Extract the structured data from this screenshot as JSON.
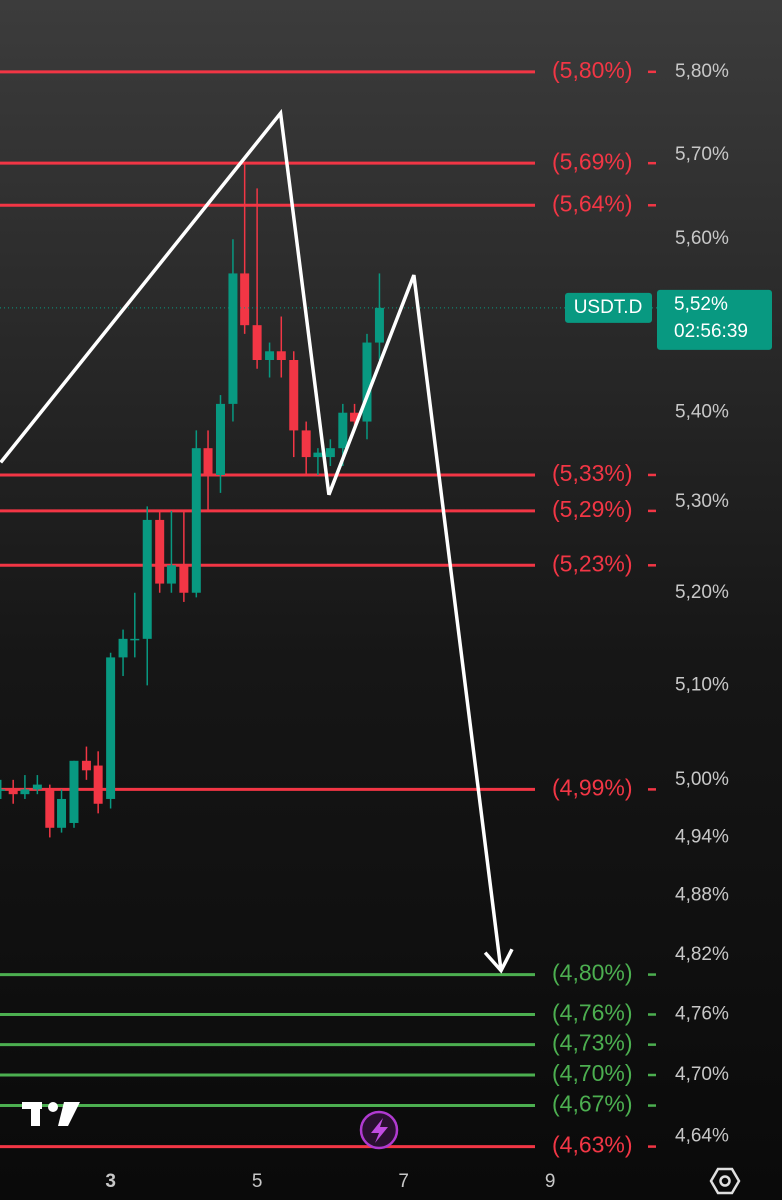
{
  "chart_data": {
    "type": "candlestick",
    "symbol": "USDT.D",
    "x": [
      1.5,
      1.67,
      1.83,
      2,
      2.17,
      2.33,
      2.5,
      2.67,
      2.83,
      3,
      3.17,
      3.33,
      3.5,
      3.67,
      3.83,
      4,
      4.17,
      4.33,
      4.5,
      4.67,
      4.83,
      5,
      5.17,
      5.33,
      5.5,
      5.67,
      5.83,
      6,
      6.17,
      6.33,
      6.5,
      6.67
    ],
    "open": [
      4.99,
      4.99,
      4.985,
      4.99,
      4.99,
      4.95,
      4.955,
      5.02,
      5.015,
      4.98,
      5.13,
      5.15,
      5.15,
      5.28,
      5.21,
      5.23,
      5.2,
      5.36,
      5.33,
      5.41,
      5.56,
      5.5,
      5.46,
      5.47,
      5.46,
      5.38,
      5.35,
      5.35,
      5.36,
      5.4,
      5.39,
      5.48
    ],
    "high": [
      5.0,
      5.0,
      5.005,
      5.005,
      4.995,
      4.99,
      5.02,
      5.035,
      5.03,
      5.135,
      5.16,
      5.2,
      5.295,
      5.29,
      5.29,
      5.29,
      5.38,
      5.38,
      5.42,
      5.6,
      5.69,
      5.66,
      5.48,
      5.51,
      5.47,
      5.39,
      5.36,
      5.37,
      5.41,
      5.41,
      5.49,
      5.56
    ],
    "low": [
      4.98,
      4.975,
      4.98,
      4.985,
      4.94,
      4.945,
      4.95,
      5.0,
      4.965,
      4.97,
      5.11,
      5.13,
      5.1,
      5.2,
      5.2,
      5.19,
      5.195,
      5.29,
      5.31,
      5.39,
      5.49,
      5.45,
      5.44,
      5.44,
      5.35,
      5.33,
      5.33,
      5.34,
      5.34,
      5.38,
      5.37,
      5.46
    ],
    "close": [
      4.99,
      4.985,
      4.99,
      4.995,
      4.95,
      4.98,
      5.02,
      5.01,
      4.975,
      5.13,
      5.15,
      5.15,
      5.28,
      5.21,
      5.23,
      5.2,
      5.36,
      5.33,
      5.41,
      5.56,
      5.5,
      5.46,
      5.47,
      5.46,
      5.38,
      5.35,
      5.355,
      5.36,
      5.4,
      5.39,
      5.48,
      5.52
    ],
    "up_color": "#089981",
    "down_color": "#f23645",
    "log_scale": true,
    "xlim": [
      1.49,
      10.5
    ],
    "ylim": [
      4.617,
      5.888
    ],
    "xticks": [
      3,
      5,
      7,
      9
    ],
    "yticks": [
      {
        "value": 5.8,
        "label": "5,80%"
      },
      {
        "value": 5.7,
        "label": "5,70%"
      },
      {
        "value": 5.6,
        "label": "5,60%"
      },
      {
        "value": 5.4,
        "label": "5,40%"
      },
      {
        "value": 5.3,
        "label": "5,30%"
      },
      {
        "value": 5.2,
        "label": "5,20%"
      },
      {
        "value": 5.1,
        "label": "5,10%"
      },
      {
        "value": 5.0,
        "label": "5,00%"
      },
      {
        "value": 4.94,
        "label": "4,94%"
      },
      {
        "value": 4.88,
        "label": "4,88%"
      },
      {
        "value": 4.82,
        "label": "4,82%"
      },
      {
        "value": 4.76,
        "label": "4,76%"
      },
      {
        "value": 4.7,
        "label": "4,70%"
      },
      {
        "value": 4.64,
        "label": "4,64%"
      }
    ],
    "levels": [
      {
        "value": 5.8,
        "label": "(5,80%)",
        "color": "#f23645"
      },
      {
        "value": 5.69,
        "label": "(5,69%)",
        "color": "#f23645"
      },
      {
        "value": 5.64,
        "label": "(5,64%)",
        "color": "#f23645"
      },
      {
        "value": 5.33,
        "label": "(5,33%)",
        "color": "#f23645"
      },
      {
        "value": 5.29,
        "label": "(5,29%)",
        "color": "#f23645"
      },
      {
        "value": 5.23,
        "label": "(5,23%)",
        "color": "#f23645"
      },
      {
        "value": 4.99,
        "label": "(4,99%)",
        "color": "#f23645"
      },
      {
        "value": 4.8,
        "label": "(4,80%)",
        "color": "#4caf50"
      },
      {
        "value": 4.76,
        "label": "(4,76%)",
        "color": "#4caf50"
      },
      {
        "value": 4.73,
        "label": "(4,73%)",
        "color": "#4caf50"
      },
      {
        "value": 4.7,
        "label": "(4,70%)",
        "color": "#4caf50"
      },
      {
        "value": 4.67,
        "label": "(4,67%)",
        "color": "#4caf50"
      },
      {
        "value": 4.63,
        "label": "(4,63%)",
        "color": "#f23645"
      }
    ],
    "last_price": {
      "value": 5.52,
      "label": "5,52%",
      "countdown": "02:56:39"
    },
    "drawing": {
      "x": [
        1.5,
        5.32,
        5.98,
        7.14,
        8.33
      ],
      "y": [
        5.344,
        5.75,
        5.308,
        5.558,
        4.804
      ],
      "color": "#ffffff"
    }
  }
}
